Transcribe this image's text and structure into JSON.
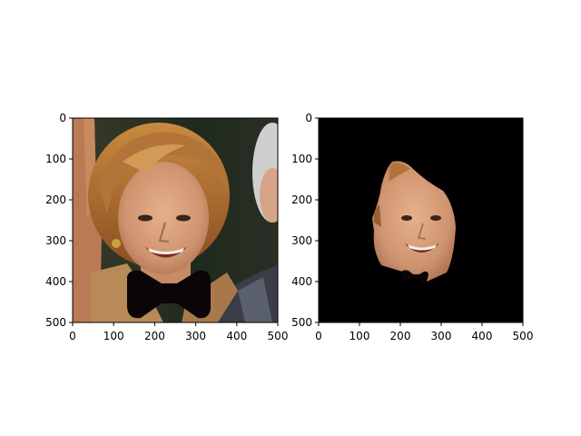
{
  "figure": {
    "background": "#ffffff",
    "panels": [
      {
        "name": "original-photo-with-bowtie",
        "description_visible": "photo of smiling woman with short reddish-brown hair, black bow-tie overlay at chin",
        "x_ticks": [
          "0",
          "100",
          "200",
          "300",
          "400",
          "500"
        ],
        "y_ticks": [
          "0",
          "100",
          "200",
          "300",
          "400",
          "500"
        ],
        "xlim": [
          0,
          500
        ],
        "ylim": [
          500,
          0
        ]
      },
      {
        "name": "segmented-face-on-black",
        "description_visible": "face region only on black background with small black bow-tie shape near chin",
        "x_ticks": [
          "0",
          "100",
          "200",
          "300",
          "400",
          "500"
        ],
        "y_ticks": [
          "0",
          "100",
          "200",
          "300",
          "400",
          "500"
        ],
        "xlim": [
          0,
          500
        ],
        "ylim": [
          500,
          0
        ]
      }
    ],
    "colors": {
      "hair": "#a8642a",
      "skin": "#d9a07a",
      "jacket": "#b08050",
      "bowtie": "#0a0506",
      "dark_bg": "#1a2418",
      "mask_bg": "#000000"
    }
  }
}
